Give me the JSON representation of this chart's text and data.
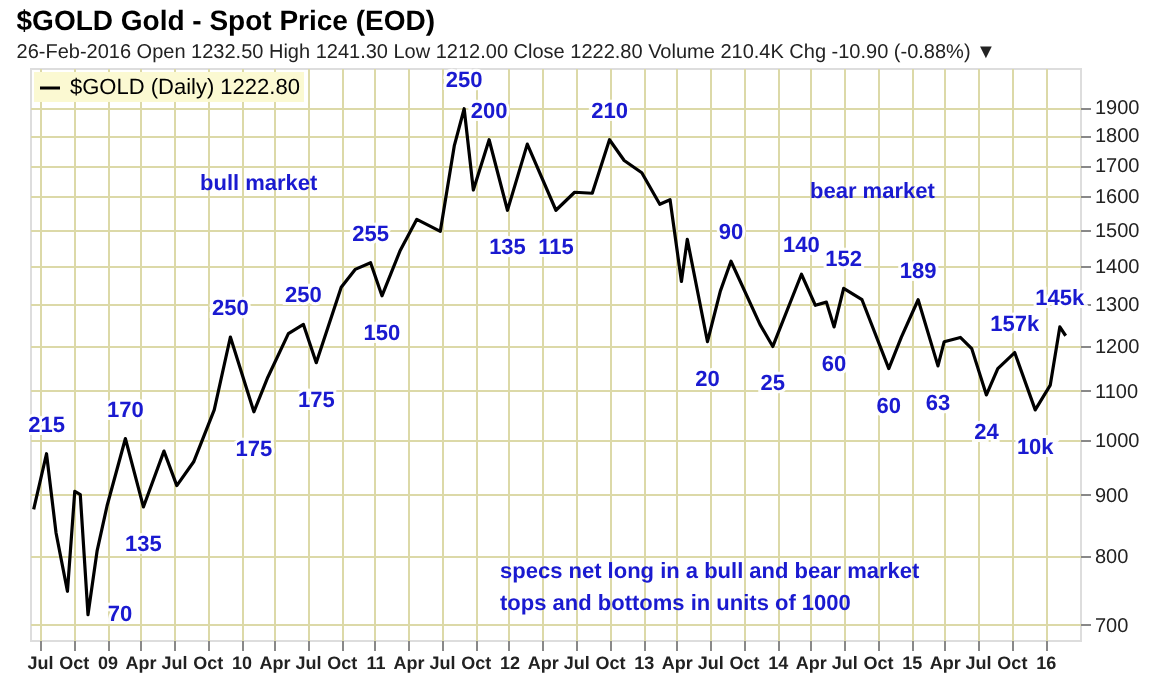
{
  "chart_data": {
    "type": "line",
    "title": "$GOLD Gold - Spot Price (EOD)",
    "subtitle": "26-Feb-2016 Open 1232.50 High 1241.30 Low 1212.00 Close 1222.80 Volume 210.4K Chg -10.90 (-0.88%) ▼",
    "x": [
      "2008-06-15",
      "2008-07-20",
      "2008-08-15",
      "2008-09-15",
      "2008-10-05",
      "2008-10-20",
      "2008-11-10",
      "2008-12-05",
      "2009-01-01",
      "2009-02-20",
      "2009-04-10",
      "2009-06-05",
      "2009-07-10",
      "2009-08-25",
      "2009-10-20",
      "2009-12-03",
      "2010-02-05",
      "2010-03-15",
      "2010-05-10",
      "2010-06-20",
      "2010-07-25",
      "2010-10-01",
      "2010-11-08",
      "2010-12-20",
      "2011-01-20",
      "2011-03-10",
      "2011-04-25",
      "2011-06-28",
      "2011-08-05",
      "2011-09-01",
      "2011-09-26",
      "2011-11-08",
      "2011-12-28",
      "2012-02-20",
      "2012-05-08",
      "2012-06-28",
      "2012-08-15",
      "2012-10-01",
      "2012-11-10",
      "2012-12-28",
      "2013-02-15",
      "2013-03-15",
      "2013-04-15",
      "2013-05-01",
      "2013-06-25",
      "2013-07-30",
      "2013-08-28",
      "2013-11-15",
      "2013-12-20",
      "2014-03-08",
      "2014-04-15",
      "2014-05-15",
      "2014-06-05",
      "2014-07-01",
      "2014-08-20",
      "2014-11-01",
      "2014-12-05",
      "2015-01-20",
      "2015-03-15",
      "2015-04-01",
      "2015-05-15",
      "2015-06-15",
      "2015-07-25",
      "2015-08-25",
      "2015-10-10",
      "2015-12-05",
      "2016-01-15",
      "2016-02-10",
      "2016-02-26"
    ],
    "series": [
      {
        "name": "$GOLD (Daily) 1222.80",
        "color": "#000000",
        "values": [
          875,
          974,
          836,
          747,
          906,
          900,
          714,
          808,
          881,
          1003,
          879,
          979,
          916,
          959,
          1060,
          1220,
          1056,
          1129,
          1228,
          1250,
          1161,
          1343,
          1390,
          1408,
          1321,
          1440,
          1531,
          1496,
          1764,
          1895,
          1620,
          1785,
          1558,
          1770,
          1558,
          1613,
          1610,
          1785,
          1715,
          1675,
          1576,
          1590,
          1358,
          1473,
          1209,
          1333,
          1412,
          1250,
          1198,
          1377,
          1297,
          1305,
          1244,
          1340,
          1311,
          1148,
          1219,
          1311,
          1154,
          1209,
          1219,
          1193,
          1091,
          1148,
          1184,
          1060,
          1112,
          1244,
          1223
        ]
      }
    ],
    "log": "y",
    "ylim": [
      680,
      2050
    ],
    "yticks": [
      700,
      800,
      900,
      1000,
      1100,
      1200,
      1300,
      1400,
      1500,
      1600,
      1700,
      1800,
      1900
    ],
    "xlim": [
      "2008-06-05",
      "2016-04-05"
    ],
    "xticks": [
      {
        "value": "2008-07-01",
        "label": "Jul"
      },
      {
        "value": "2008-10-01",
        "label": "Oct"
      },
      {
        "value": "2009-01-01",
        "label": "09"
      },
      {
        "value": "2009-04-01",
        "label": "Apr"
      },
      {
        "value": "2009-07-01",
        "label": "Jul"
      },
      {
        "value": "2009-10-01",
        "label": "Oct"
      },
      {
        "value": "2010-01-01",
        "label": "10"
      },
      {
        "value": "2010-04-01",
        "label": "Apr"
      },
      {
        "value": "2010-07-01",
        "label": "Jul"
      },
      {
        "value": "2010-10-01",
        "label": "Oct"
      },
      {
        "value": "2011-01-01",
        "label": "11"
      },
      {
        "value": "2011-04-01",
        "label": "Apr"
      },
      {
        "value": "2011-07-01",
        "label": "Jul"
      },
      {
        "value": "2011-10-01",
        "label": "Oct"
      },
      {
        "value": "2012-01-01",
        "label": "12"
      },
      {
        "value": "2012-04-01",
        "label": "Apr"
      },
      {
        "value": "2012-07-01",
        "label": "Jul"
      },
      {
        "value": "2012-10-01",
        "label": "Oct"
      },
      {
        "value": "2013-01-01",
        "label": "13"
      },
      {
        "value": "2013-04-01",
        "label": "Apr"
      },
      {
        "value": "2013-07-01",
        "label": "Jul"
      },
      {
        "value": "2013-10-01",
        "label": "Oct"
      },
      {
        "value": "2014-01-01",
        "label": "14"
      },
      {
        "value": "2014-04-01",
        "label": "Apr"
      },
      {
        "value": "2014-07-01",
        "label": "Jul"
      },
      {
        "value": "2014-10-01",
        "label": "Oct"
      },
      {
        "value": "2015-01-01",
        "label": "15"
      },
      {
        "value": "2015-04-01",
        "label": "Apr"
      },
      {
        "value": "2015-07-01",
        "label": "Jul"
      },
      {
        "value": "2015-10-01",
        "label": "Oct"
      },
      {
        "value": "2016-01-01",
        "label": "16"
      }
    ],
    "grid": true,
    "legend": "top left",
    "marker": "none",
    "line_style": "solid",
    "annotations": [
      {
        "text": "215",
        "x": "2008-07-20",
        "y": 974
      },
      {
        "text": "170",
        "x": "2009-02-20",
        "y": 1003
      },
      {
        "text": "135",
        "x": "2009-04-10",
        "y": 879
      },
      {
        "text": "70",
        "x": "2008-11-10",
        "y": 714
      },
      {
        "text": "250",
        "x": "2009-12-03",
        "y": 1220
      },
      {
        "text": "175",
        "x": "2010-02-05",
        "y": 1056
      },
      {
        "text": "250",
        "x": "2010-06-20",
        "y": 1250
      },
      {
        "text": "175",
        "x": "2010-07-25",
        "y": 1161
      },
      {
        "text": "255",
        "x": "2010-12-20",
        "y": 1408
      },
      {
        "text": "150",
        "x": "2011-01-20",
        "y": 1321
      },
      {
        "text": "250",
        "x": "2011-09-01",
        "y": 1895
      },
      {
        "text": "200",
        "x": "2011-11-08",
        "y": 1785
      },
      {
        "text": "135",
        "x": "2011-12-28",
        "y": 1558
      },
      {
        "text": "115",
        "x": "2012-05-08",
        "y": 1558
      },
      {
        "text": "210",
        "x": "2012-10-01",
        "y": 1785
      },
      {
        "text": "20",
        "x": "2013-06-25",
        "y": 1209
      },
      {
        "text": "90",
        "x": "2013-08-28",
        "y": 1412
      },
      {
        "text": "25",
        "x": "2013-12-20",
        "y": 1198
      },
      {
        "text": "140",
        "x": "2014-03-08",
        "y": 1377
      },
      {
        "text": "60",
        "x": "2014-06-05",
        "y": 1244
      },
      {
        "text": "152",
        "x": "2014-07-01",
        "y": 1340
      },
      {
        "text": "60",
        "x": "2014-11-01",
        "y": 1148
      },
      {
        "text": "189",
        "x": "2015-01-20",
        "y": 1311
      },
      {
        "text": "63",
        "x": "2015-03-15",
        "y": 1154
      },
      {
        "text": "24",
        "x": "2015-07-25",
        "y": 1091
      },
      {
        "text": "157k",
        "x": "2015-10-10",
        "y": 1184
      },
      {
        "text": "10k",
        "x": "2015-12-05",
        "y": 1060
      },
      {
        "text": "145k",
        "x": "2016-02-10",
        "y": 1244
      },
      "bull market",
      "bear market",
      "specs net long in a bull and bear market",
      "tops and bottoms in units of 1000"
    ]
  }
}
